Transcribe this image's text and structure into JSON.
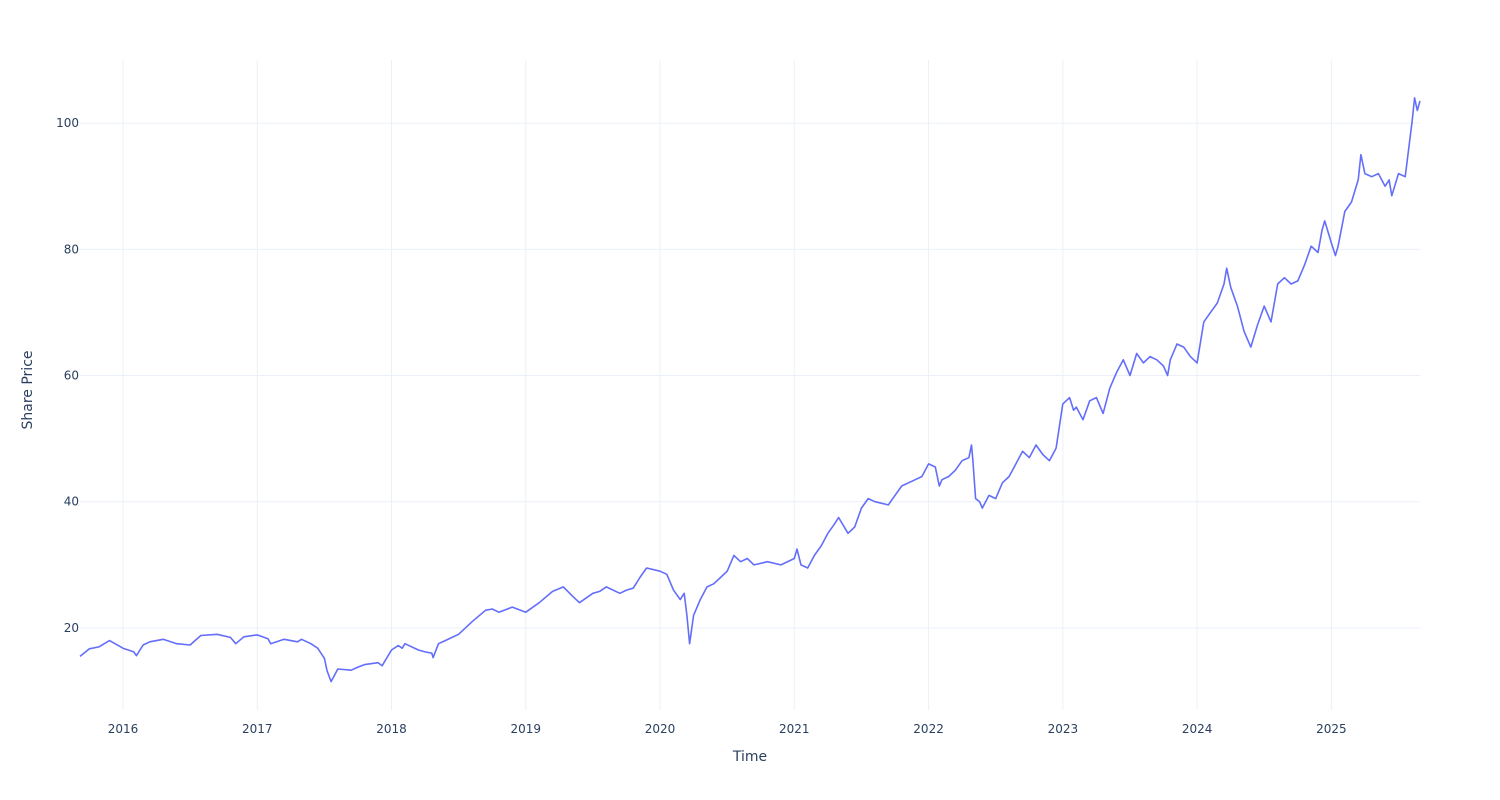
{
  "chart_data": {
    "type": "line",
    "title": "",
    "xlabel": "Time",
    "ylabel": "Share Price",
    "xlim": [
      2015.68,
      2025.66
    ],
    "ylim": [
      7,
      110
    ],
    "x_ticks": [
      2016,
      2017,
      2018,
      2019,
      2020,
      2021,
      2022,
      2023,
      2024,
      2025
    ],
    "x_tick_labels": [
      "2016",
      "2017",
      "2018",
      "2019",
      "2020",
      "2021",
      "2022",
      "2023",
      "2024",
      "2025"
    ],
    "y_ticks": [
      20,
      40,
      60,
      80,
      100
    ],
    "y_tick_labels": [
      "20",
      "40",
      "60",
      "80",
      "100"
    ],
    "grid": true,
    "line_color": "#636efa",
    "series": [
      {
        "x": [
          2015.68,
          2015.75,
          2015.82,
          2015.9,
          2016.0,
          2016.08,
          2016.1,
          2016.15,
          2016.2,
          2016.3,
          2016.4,
          2016.5,
          2016.58,
          2016.7,
          2016.8,
          2016.84,
          2016.9,
          2017.0,
          2017.08,
          2017.1,
          2017.2,
          2017.3,
          2017.33,
          2017.4,
          2017.45,
          2017.5,
          2017.52,
          2017.55,
          2017.6,
          2017.7,
          2017.75,
          2017.8,
          2017.9,
          2017.93,
          2018.0,
          2018.05,
          2018.08,
          2018.1,
          2018.2,
          2018.25,
          2018.3,
          2018.31,
          2018.35,
          2018.4,
          2018.5,
          2018.6,
          2018.7,
          2018.75,
          2018.8,
          2018.9,
          2019.0,
          2019.1,
          2019.2,
          2019.28,
          2019.35,
          2019.4,
          2019.5,
          2019.55,
          2019.6,
          2019.7,
          2019.75,
          2019.8,
          2019.85,
          2019.9,
          2020.0,
          2020.05,
          2020.1,
          2020.15,
          2020.18,
          2020.2,
          2020.22,
          2020.25,
          2020.3,
          2020.35,
          2020.4,
          2020.45,
          2020.5,
          2020.55,
          2020.6,
          2020.65,
          2020.7,
          2020.8,
          2020.9,
          2021.0,
          2021.02,
          2021.05,
          2021.1,
          2021.15,
          2021.2,
          2021.25,
          2021.3,
          2021.33,
          2021.4,
          2021.45,
          2021.5,
          2021.55,
          2021.6,
          2021.7,
          2021.75,
          2021.8,
          2021.9,
          2021.95,
          2022.0,
          2022.05,
          2022.08,
          2022.1,
          2022.15,
          2022.2,
          2022.25,
          2022.3,
          2022.32,
          2022.33,
          2022.35,
          2022.38,
          2022.4,
          2022.45,
          2022.5,
          2022.55,
          2022.6,
          2022.65,
          2022.7,
          2022.75,
          2022.8,
          2022.85,
          2022.9,
          2022.95,
          2023.0,
          2023.05,
          2023.08,
          2023.1,
          2023.15,
          2023.2,
          2023.25,
          2023.3,
          2023.35,
          2023.4,
          2023.45,
          2023.5,
          2023.55,
          2023.6,
          2023.65,
          2023.7,
          2023.75,
          2023.78,
          2023.8,
          2023.85,
          2023.9,
          2023.95,
          2024.0,
          2024.05,
          2024.1,
          2024.15,
          2024.2,
          2024.22,
          2024.25,
          2024.3,
          2024.35,
          2024.4,
          2024.45,
          2024.5,
          2024.55,
          2024.6,
          2024.65,
          2024.7,
          2024.75,
          2024.8,
          2024.85,
          2024.9,
          2024.93,
          2024.95,
          2025.0,
          2025.03,
          2025.05,
          2025.1,
          2025.15,
          2025.2,
          2025.22,
          2025.25,
          2025.3,
          2025.35,
          2025.4,
          2025.43,
          2025.45,
          2025.5,
          2025.55,
          2025.6,
          2025.62,
          2025.64,
          2025.66
        ],
        "y": [
          15.5,
          16.7,
          17.0,
          18.0,
          16.8,
          16.2,
          15.6,
          17.3,
          17.8,
          18.2,
          17.5,
          17.3,
          18.8,
          19.0,
          18.5,
          17.5,
          18.6,
          18.9,
          18.3,
          17.5,
          18.2,
          17.8,
          18.2,
          17.5,
          16.8,
          15.2,
          13.2,
          11.5,
          13.5,
          13.3,
          13.8,
          14.2,
          14.5,
          14.0,
          16.5,
          17.2,
          16.8,
          17.5,
          16.5,
          16.2,
          16.0,
          15.3,
          17.5,
          18.0,
          19.0,
          21.0,
          22.8,
          23.0,
          22.5,
          23.3,
          22.5,
          24.0,
          25.8,
          26.5,
          25.0,
          24.0,
          25.5,
          25.8,
          26.5,
          25.5,
          26.0,
          26.3,
          28.0,
          29.5,
          29.0,
          28.5,
          26.0,
          24.5,
          25.5,
          22.0,
          17.5,
          22.0,
          24.5,
          26.5,
          27.0,
          28.0,
          29.0,
          31.5,
          30.5,
          31.0,
          30.0,
          30.5,
          30.0,
          31.0,
          32.5,
          30.0,
          29.5,
          31.5,
          33.0,
          35.0,
          36.5,
          37.5,
          35.0,
          36.0,
          39.0,
          40.5,
          40.0,
          39.5,
          41.0,
          42.5,
          43.5,
          44.0,
          46.0,
          45.5,
          42.5,
          43.5,
          44.0,
          45.0,
          46.5,
          47.0,
          49.0,
          46.5,
          40.5,
          40.0,
          39.0,
          41.0,
          40.5,
          43.0,
          44.0,
          46.0,
          48.0,
          47.0,
          49.0,
          47.5,
          46.5,
          48.5,
          55.5,
          56.5,
          54.5,
          55.0,
          53.0,
          56.0,
          56.5,
          54.0,
          58.0,
          60.5,
          62.5,
          60.0,
          63.5,
          62.0,
          63.0,
          62.5,
          61.5,
          60.0,
          62.5,
          65.0,
          64.5,
          63.0,
          62.0,
          68.5,
          70.0,
          71.5,
          74.5,
          77.0,
          74.0,
          71.0,
          67.0,
          64.5,
          68.0,
          71.0,
          68.5,
          74.5,
          75.5,
          74.5,
          75.0,
          77.5,
          80.5,
          79.5,
          83.0,
          84.5,
          81.0,
          79.0,
          80.5,
          86.0,
          87.5,
          91.0,
          95.0,
          92.0,
          91.5,
          92.0,
          90.0,
          91.0,
          88.5,
          92.0,
          91.5,
          100.0,
          104.0,
          102.0,
          103.5
        ]
      }
    ]
  }
}
